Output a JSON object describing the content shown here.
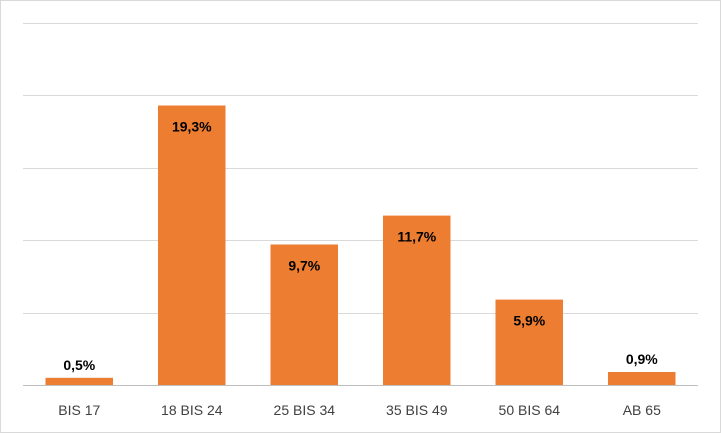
{
  "chart_data": {
    "type": "bar",
    "categories": [
      "BIS 17",
      "18 BIS 24",
      "25 BIS 34",
      "35 BIS 49",
      "50 BIS 64",
      "AB 65"
    ],
    "values": [
      0.5,
      19.3,
      9.7,
      11.7,
      5.9,
      0.9
    ],
    "data_labels": [
      "0,5%",
      "19,3%",
      "9,7%",
      "11,7%",
      "5,9%",
      "0,9%"
    ],
    "ylim": [
      0,
      25
    ],
    "grid": true,
    "gridline_step": 5,
    "bar_color": "#ed7d31",
    "gridline_color": "#d9d9d9",
    "axis_color": "#bfbfbf",
    "label_inside_top_threshold": 5
  }
}
